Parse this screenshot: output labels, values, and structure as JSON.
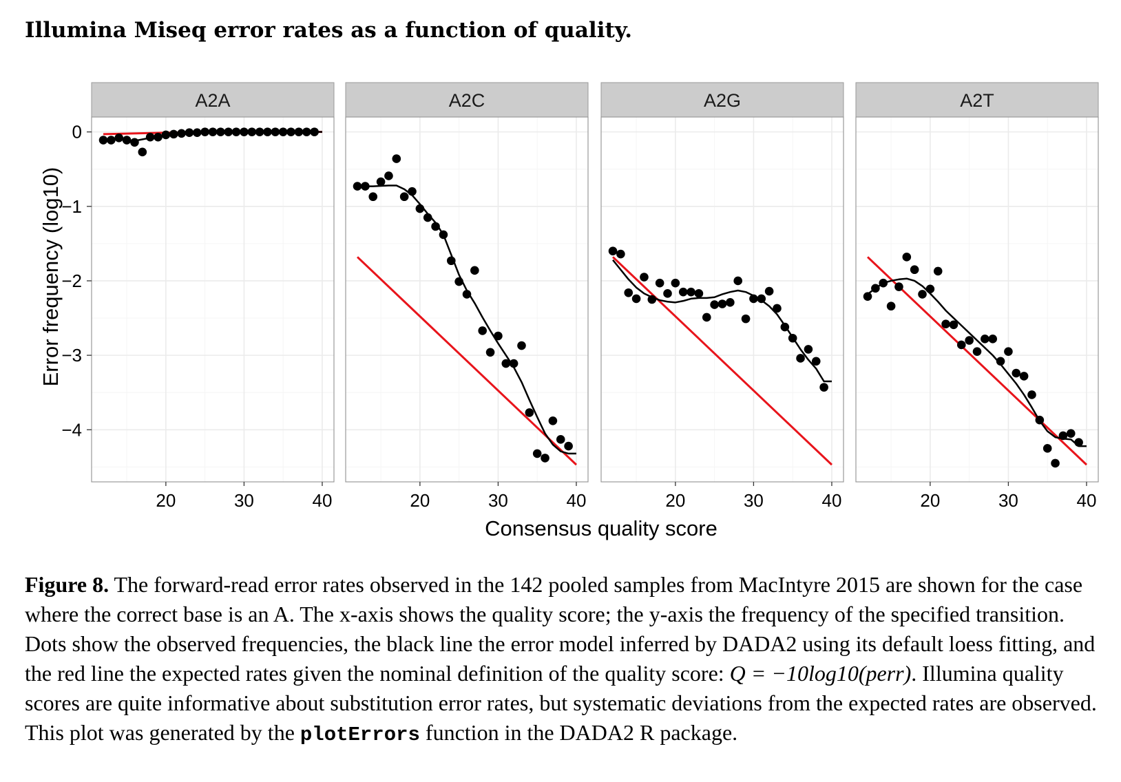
{
  "figure": {
    "title": "Illumina Miseq error rates as a function of quality."
  },
  "caption": {
    "label": "Figure 8.",
    "part1": "The forward-read error rates observed in the 142 pooled samples from MacIntyre 2015 are shown for the case where the correct base is an A. The x-axis shows the quality score; the y-axis the frequency of the specified transition. Dots show the observed frequencies, the black line the error model inferred by DADA2 using its default loess fitting, and the red line the expected rates given the nominal definition of the quality score:",
    "formula": "Q = −10log10(perr)",
    "part2": ". Illumina quality scores are quite informative about substitution error rates, but systematic deviations from the expected rates are observed. This plot was generated by the",
    "code": "plotErrors",
    "part3": "function in the DADA2 R package."
  },
  "chart_data": {
    "type": "scatter",
    "xlabel": "Consensus quality score",
    "ylabel": "Error frequency (log10)",
    "xlim": [
      10.5,
      41.5
    ],
    "ylim": [
      -4.7,
      0.2
    ],
    "xticks": [
      20,
      30,
      40
    ],
    "yticks": [
      0,
      -1,
      -2,
      -3,
      -4
    ],
    "ytick_labels": [
      "0",
      "−1",
      "−2",
      "−3",
      "−4"
    ],
    "grid": true,
    "colors": {
      "points": "#000000",
      "fit_line": "#000000",
      "expected_line": "#e8141b",
      "strip_bg": "#cccccc",
      "panel_border": "#999999",
      "grid_major": "#ebebeb",
      "grid_minor": "#f5f5f5"
    },
    "panels": [
      {
        "name": "A2A",
        "points": [
          [
            12,
            -0.11
          ],
          [
            13,
            -0.11
          ],
          [
            14,
            -0.08
          ],
          [
            15,
            -0.11
          ],
          [
            16,
            -0.14
          ],
          [
            17,
            -0.27
          ],
          [
            18,
            -0.07
          ],
          [
            19,
            -0.07
          ],
          [
            20,
            -0.04
          ],
          [
            21,
            -0.03
          ],
          [
            22,
            -0.02
          ],
          [
            23,
            -0.01
          ],
          [
            24,
            -0.01
          ],
          [
            25,
            0
          ],
          [
            26,
            0
          ],
          [
            27,
            0
          ],
          [
            28,
            0
          ],
          [
            29,
            0
          ],
          [
            30,
            0
          ],
          [
            31,
            0
          ],
          [
            32,
            0
          ],
          [
            33,
            0
          ],
          [
            34,
            0
          ],
          [
            35,
            0
          ],
          [
            36,
            0
          ],
          [
            37,
            0
          ],
          [
            38,
            0
          ],
          [
            39,
            0
          ]
        ],
        "fit": [
          [
            12,
            -0.1
          ],
          [
            14,
            -0.1
          ],
          [
            16,
            -0.12
          ],
          [
            18,
            -0.08
          ],
          [
            20,
            -0.04
          ],
          [
            22,
            -0.02
          ],
          [
            24,
            -0.01
          ],
          [
            26,
            0
          ],
          [
            30,
            0
          ],
          [
            35,
            0
          ],
          [
            40,
            0
          ]
        ],
        "expected": [
          [
            12,
            -0.03
          ],
          [
            20,
            -0.01
          ],
          [
            30,
            0
          ],
          [
            40,
            0
          ]
        ]
      },
      {
        "name": "A2C",
        "points": [
          [
            12,
            -0.73
          ],
          [
            13,
            -0.73
          ],
          [
            14,
            -0.87
          ],
          [
            15,
            -0.67
          ],
          [
            16,
            -0.59
          ],
          [
            17,
            -0.36
          ],
          [
            18,
            -0.87
          ],
          [
            19,
            -0.8
          ],
          [
            20,
            -1.03
          ],
          [
            21,
            -1.15
          ],
          [
            22,
            -1.27
          ],
          [
            23,
            -1.38
          ],
          [
            24,
            -1.73
          ],
          [
            25,
            -2.01
          ],
          [
            26,
            -2.18
          ],
          [
            27,
            -1.86
          ],
          [
            28,
            -2.67
          ],
          [
            29,
            -2.96
          ],
          [
            30,
            -2.74
          ],
          [
            31,
            -3.11
          ],
          [
            32,
            -3.11
          ],
          [
            33,
            -2.87
          ],
          [
            34,
            -3.77
          ],
          [
            35,
            -4.32
          ],
          [
            36,
            -4.38
          ],
          [
            37,
            -3.88
          ],
          [
            38,
            -4.13
          ],
          [
            39,
            -4.22
          ]
        ],
        "fit": [
          [
            12,
            -0.73
          ],
          [
            14,
            -0.73
          ],
          [
            16,
            -0.72
          ],
          [
            17,
            -0.72
          ],
          [
            18,
            -0.77
          ],
          [
            19,
            -0.85
          ],
          [
            20,
            -0.97
          ],
          [
            21,
            -1.1
          ],
          [
            22,
            -1.22
          ],
          [
            23,
            -1.38
          ],
          [
            24,
            -1.65
          ],
          [
            25,
            -1.92
          ],
          [
            26,
            -2.13
          ],
          [
            27,
            -2.3
          ],
          [
            28,
            -2.49
          ],
          [
            29,
            -2.67
          ],
          [
            30,
            -2.84
          ],
          [
            31,
            -3.0
          ],
          [
            32,
            -3.16
          ],
          [
            33,
            -3.36
          ],
          [
            34,
            -3.6
          ],
          [
            35,
            -3.83
          ],
          [
            36,
            -4.05
          ],
          [
            37,
            -4.2
          ],
          [
            38,
            -4.29
          ],
          [
            39,
            -4.32
          ],
          [
            40,
            -4.32
          ]
        ],
        "expected": [
          [
            12,
            -1.68
          ],
          [
            40,
            -4.47
          ]
        ]
      },
      {
        "name": "A2G",
        "points": [
          [
            12,
            -1.6
          ],
          [
            13,
            -1.64
          ],
          [
            14,
            -2.16
          ],
          [
            15,
            -2.24
          ],
          [
            16,
            -1.95
          ],
          [
            17,
            -2.25
          ],
          [
            18,
            -2.03
          ],
          [
            19,
            -2.17
          ],
          [
            20,
            -2.03
          ],
          [
            21,
            -2.15
          ],
          [
            22,
            -2.15
          ],
          [
            23,
            -2.17
          ],
          [
            24,
            -2.49
          ],
          [
            25,
            -2.32
          ],
          [
            26,
            -2.31
          ],
          [
            27,
            -2.29
          ],
          [
            28,
            -2.0
          ],
          [
            29,
            -2.51
          ],
          [
            30,
            -2.24
          ],
          [
            31,
            -2.24
          ],
          [
            32,
            -2.14
          ],
          [
            33,
            -2.37
          ],
          [
            34,
            -2.62
          ],
          [
            35,
            -2.77
          ],
          [
            36,
            -3.04
          ],
          [
            37,
            -2.92
          ],
          [
            38,
            -3.08
          ],
          [
            39,
            -3.43
          ]
        ],
        "fit": [
          [
            12,
            -1.72
          ],
          [
            13,
            -1.85
          ],
          [
            14,
            -1.98
          ],
          [
            15,
            -2.09
          ],
          [
            16,
            -2.17
          ],
          [
            17,
            -2.22
          ],
          [
            18,
            -2.26
          ],
          [
            19,
            -2.28
          ],
          [
            20,
            -2.29
          ],
          [
            21,
            -2.27
          ],
          [
            22,
            -2.24
          ],
          [
            23,
            -2.23
          ],
          [
            24,
            -2.23
          ],
          [
            25,
            -2.22
          ],
          [
            26,
            -2.18
          ],
          [
            27,
            -2.15
          ],
          [
            28,
            -2.13
          ],
          [
            29,
            -2.15
          ],
          [
            30,
            -2.2
          ],
          [
            31,
            -2.26
          ],
          [
            32,
            -2.34
          ],
          [
            33,
            -2.45
          ],
          [
            34,
            -2.6
          ],
          [
            35,
            -2.76
          ],
          [
            36,
            -2.92
          ],
          [
            37,
            -3.06
          ],
          [
            38,
            -3.18
          ],
          [
            39,
            -3.35
          ],
          [
            40,
            -3.35
          ]
        ],
        "expected": [
          [
            12,
            -1.68
          ],
          [
            40,
            -4.47
          ]
        ]
      },
      {
        "name": "A2T",
        "points": [
          [
            12,
            -2.21
          ],
          [
            13,
            -2.1
          ],
          [
            14,
            -2.03
          ],
          [
            15,
            -2.34
          ],
          [
            16,
            -2.08
          ],
          [
            17,
            -1.68
          ],
          [
            18,
            -1.85
          ],
          [
            19,
            -2.18
          ],
          [
            20,
            -2.11
          ],
          [
            21,
            -1.87
          ],
          [
            22,
            -2.58
          ],
          [
            23,
            -2.59
          ],
          [
            24,
            -2.86
          ],
          [
            25,
            -2.8
          ],
          [
            26,
            -2.95
          ],
          [
            27,
            -2.78
          ],
          [
            28,
            -2.78
          ],
          [
            29,
            -3.08
          ],
          [
            30,
            -2.95
          ],
          [
            31,
            -3.24
          ],
          [
            32,
            -3.28
          ],
          [
            33,
            -3.53
          ],
          [
            34,
            -3.87
          ],
          [
            35,
            -4.25
          ],
          [
            36,
            -4.45
          ],
          [
            37,
            -4.08
          ],
          [
            38,
            -4.05
          ],
          [
            39,
            -4.17
          ]
        ],
        "fit": [
          [
            12,
            -2.18
          ],
          [
            13,
            -2.1
          ],
          [
            14,
            -2.03
          ],
          [
            15,
            -2.0
          ],
          [
            16,
            -1.98
          ],
          [
            17,
            -1.97
          ],
          [
            18,
            -2.0
          ],
          [
            19,
            -2.07
          ],
          [
            20,
            -2.17
          ],
          [
            21,
            -2.28
          ],
          [
            22,
            -2.4
          ],
          [
            23,
            -2.5
          ],
          [
            24,
            -2.6
          ],
          [
            25,
            -2.7
          ],
          [
            26,
            -2.8
          ],
          [
            27,
            -2.9
          ],
          [
            28,
            -3.0
          ],
          [
            29,
            -3.12
          ],
          [
            30,
            -3.25
          ],
          [
            31,
            -3.38
          ],
          [
            32,
            -3.53
          ],
          [
            33,
            -3.7
          ],
          [
            34,
            -3.88
          ],
          [
            35,
            -4.02
          ],
          [
            36,
            -4.1
          ],
          [
            37,
            -4.12
          ],
          [
            38,
            -4.13
          ],
          [
            39,
            -4.22
          ],
          [
            40,
            -4.22
          ]
        ],
        "expected": [
          [
            12,
            -1.68
          ],
          [
            40,
            -4.47
          ]
        ]
      }
    ]
  }
}
